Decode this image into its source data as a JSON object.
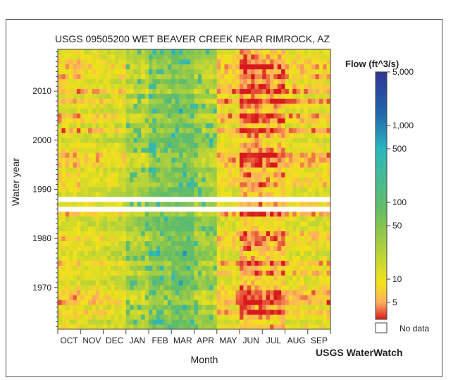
{
  "chart_data": {
    "type": "heatmap",
    "title": "USGS 09505200 WET BEAVER CREEK NEAR RIMROCK, AZ",
    "xlabel": "Month",
    "ylabel": "Water year",
    "months": [
      "OCT",
      "NOV",
      "DEC",
      "JAN",
      "FEB",
      "MAR",
      "APR",
      "MAY",
      "JUN",
      "JUL",
      "AUG",
      "SEP"
    ],
    "year_ticks": [
      1970,
      1980,
      1990,
      2000,
      2010
    ],
    "year_range": [
      1962,
      2018
    ],
    "no_data_years": [
      1986,
      1988
    ],
    "legend": {
      "title": "Flow (ft^3/s)",
      "scale": "log",
      "ticks": [
        "5,000",
        "1,000",
        "500",
        "100",
        "50",
        "10",
        "5"
      ],
      "no_data_label": "No data",
      "colors": [
        "#d7191c",
        "#fdae61",
        "#f2e21a",
        "#66bd63",
        "#2ab7c0",
        "#2166ac",
        "#313695"
      ]
    },
    "typical_flow_by_month": [
      8,
      10,
      12,
      20,
      40,
      55,
      25,
      8,
      4,
      5,
      8,
      8
    ],
    "brand": "USGS WaterWatch"
  }
}
